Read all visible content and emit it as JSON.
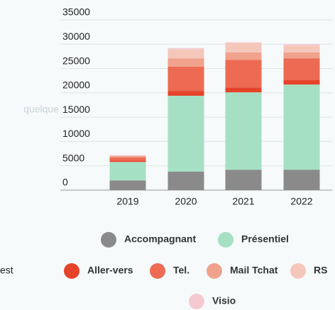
{
  "chart_data": {
    "type": "stacked_bar",
    "categories": [
      "2019",
      "2020",
      "2021",
      "2022"
    ],
    "series": [
      {
        "name": "Accompagnant",
        "color": "#8a8a8a",
        "values": [
          2000,
          3800,
          4200,
          4200
        ]
      },
      {
        "name": "Présentiel",
        "color": "#a6e0c4",
        "values": [
          3800,
          15600,
          15900,
          17500
        ]
      },
      {
        "name": "Aller-vers",
        "color": "#e5432a",
        "values": [
          300,
          1000,
          1000,
          900
        ]
      },
      {
        "name": "Tel.",
        "color": "#ec6b52",
        "values": [
          600,
          5000,
          5700,
          4500
        ]
      },
      {
        "name": "Mail Tchat",
        "color": "#f0a28c",
        "values": [
          300,
          1700,
          1500,
          1200
        ]
      },
      {
        "name": "RS",
        "color": "#f5c7bb",
        "values": [
          100,
          1800,
          2000,
          1400
        ]
      },
      {
        "name": "Visio",
        "color": "#f4cad0",
        "values": [
          100,
          300,
          100,
          300
        ]
      }
    ],
    "ylim": [
      0,
      35000
    ],
    "yticks": [
      0,
      5000,
      10000,
      15000,
      20000,
      25000,
      30000,
      35000
    ],
    "grid": true,
    "annotations": [
      "quelque",
      "est"
    ]
  }
}
